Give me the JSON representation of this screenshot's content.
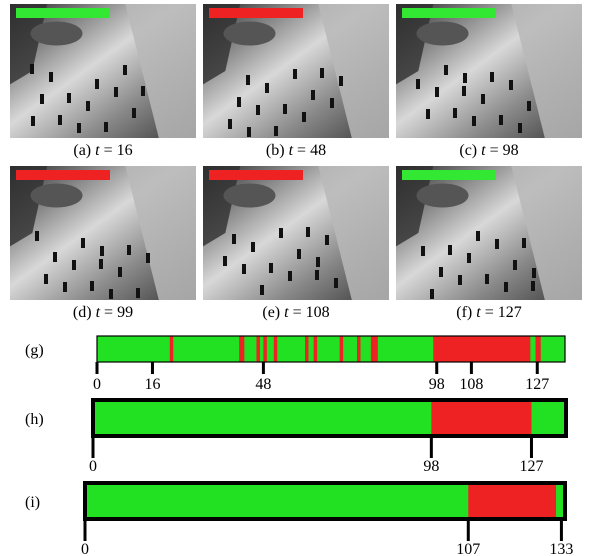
{
  "panels": [
    {
      "tag": "(a)",
      "variable": "t",
      "equals": "=",
      "frame": 16,
      "status_color": "#33e833"
    },
    {
      "tag": "(b)",
      "variable": "t",
      "equals": "=",
      "frame": 48,
      "status_color": "#ee2222"
    },
    {
      "tag": "(c)",
      "variable": "t",
      "equals": "=",
      "frame": 98,
      "status_color": "#33e833"
    },
    {
      "tag": "(d)",
      "variable": "t",
      "equals": "=",
      "frame": 99,
      "status_color": "#ee2222"
    },
    {
      "tag": "(e)",
      "variable": "t",
      "equals": "=",
      "frame": 108,
      "status_color": "#ee2222"
    },
    {
      "tag": "(f)",
      "variable": "t",
      "equals": "=",
      "frame": 127,
      "status_color": "#33e833"
    }
  ],
  "timelines": [
    {
      "tag": "(g)",
      "xlim": [
        0,
        135
      ],
      "xticks": [
        0,
        16,
        48,
        98,
        108,
        127
      ],
      "base_color": "#22e022",
      "event_color": "#ee2222",
      "events": [
        [
          21,
          22
        ],
        [
          41,
          42.5
        ],
        [
          46,
          47
        ],
        [
          48,
          49
        ],
        [
          51,
          52
        ],
        [
          60,
          61
        ],
        [
          62.5,
          63.5
        ],
        [
          70,
          71
        ],
        [
          75,
          76
        ],
        [
          79,
          81
        ],
        [
          97,
          125
        ],
        [
          126.5,
          128
        ]
      ]
    },
    {
      "tag": "(h)",
      "xlim": [
        0,
        137
      ],
      "xticks": [
        0,
        98,
        127
      ],
      "base_color": "#22e022",
      "event_color": "#ee2222",
      "events": [
        [
          98,
          127
        ]
      ]
    },
    {
      "tag": "(i)",
      "xlim": [
        0,
        134
      ],
      "xticks": [
        0,
        107,
        133
      ],
      "base_color": "#22e022",
      "event_color": "#ee2222",
      "events": [
        [
          107,
          131.5
        ]
      ]
    }
  ]
}
